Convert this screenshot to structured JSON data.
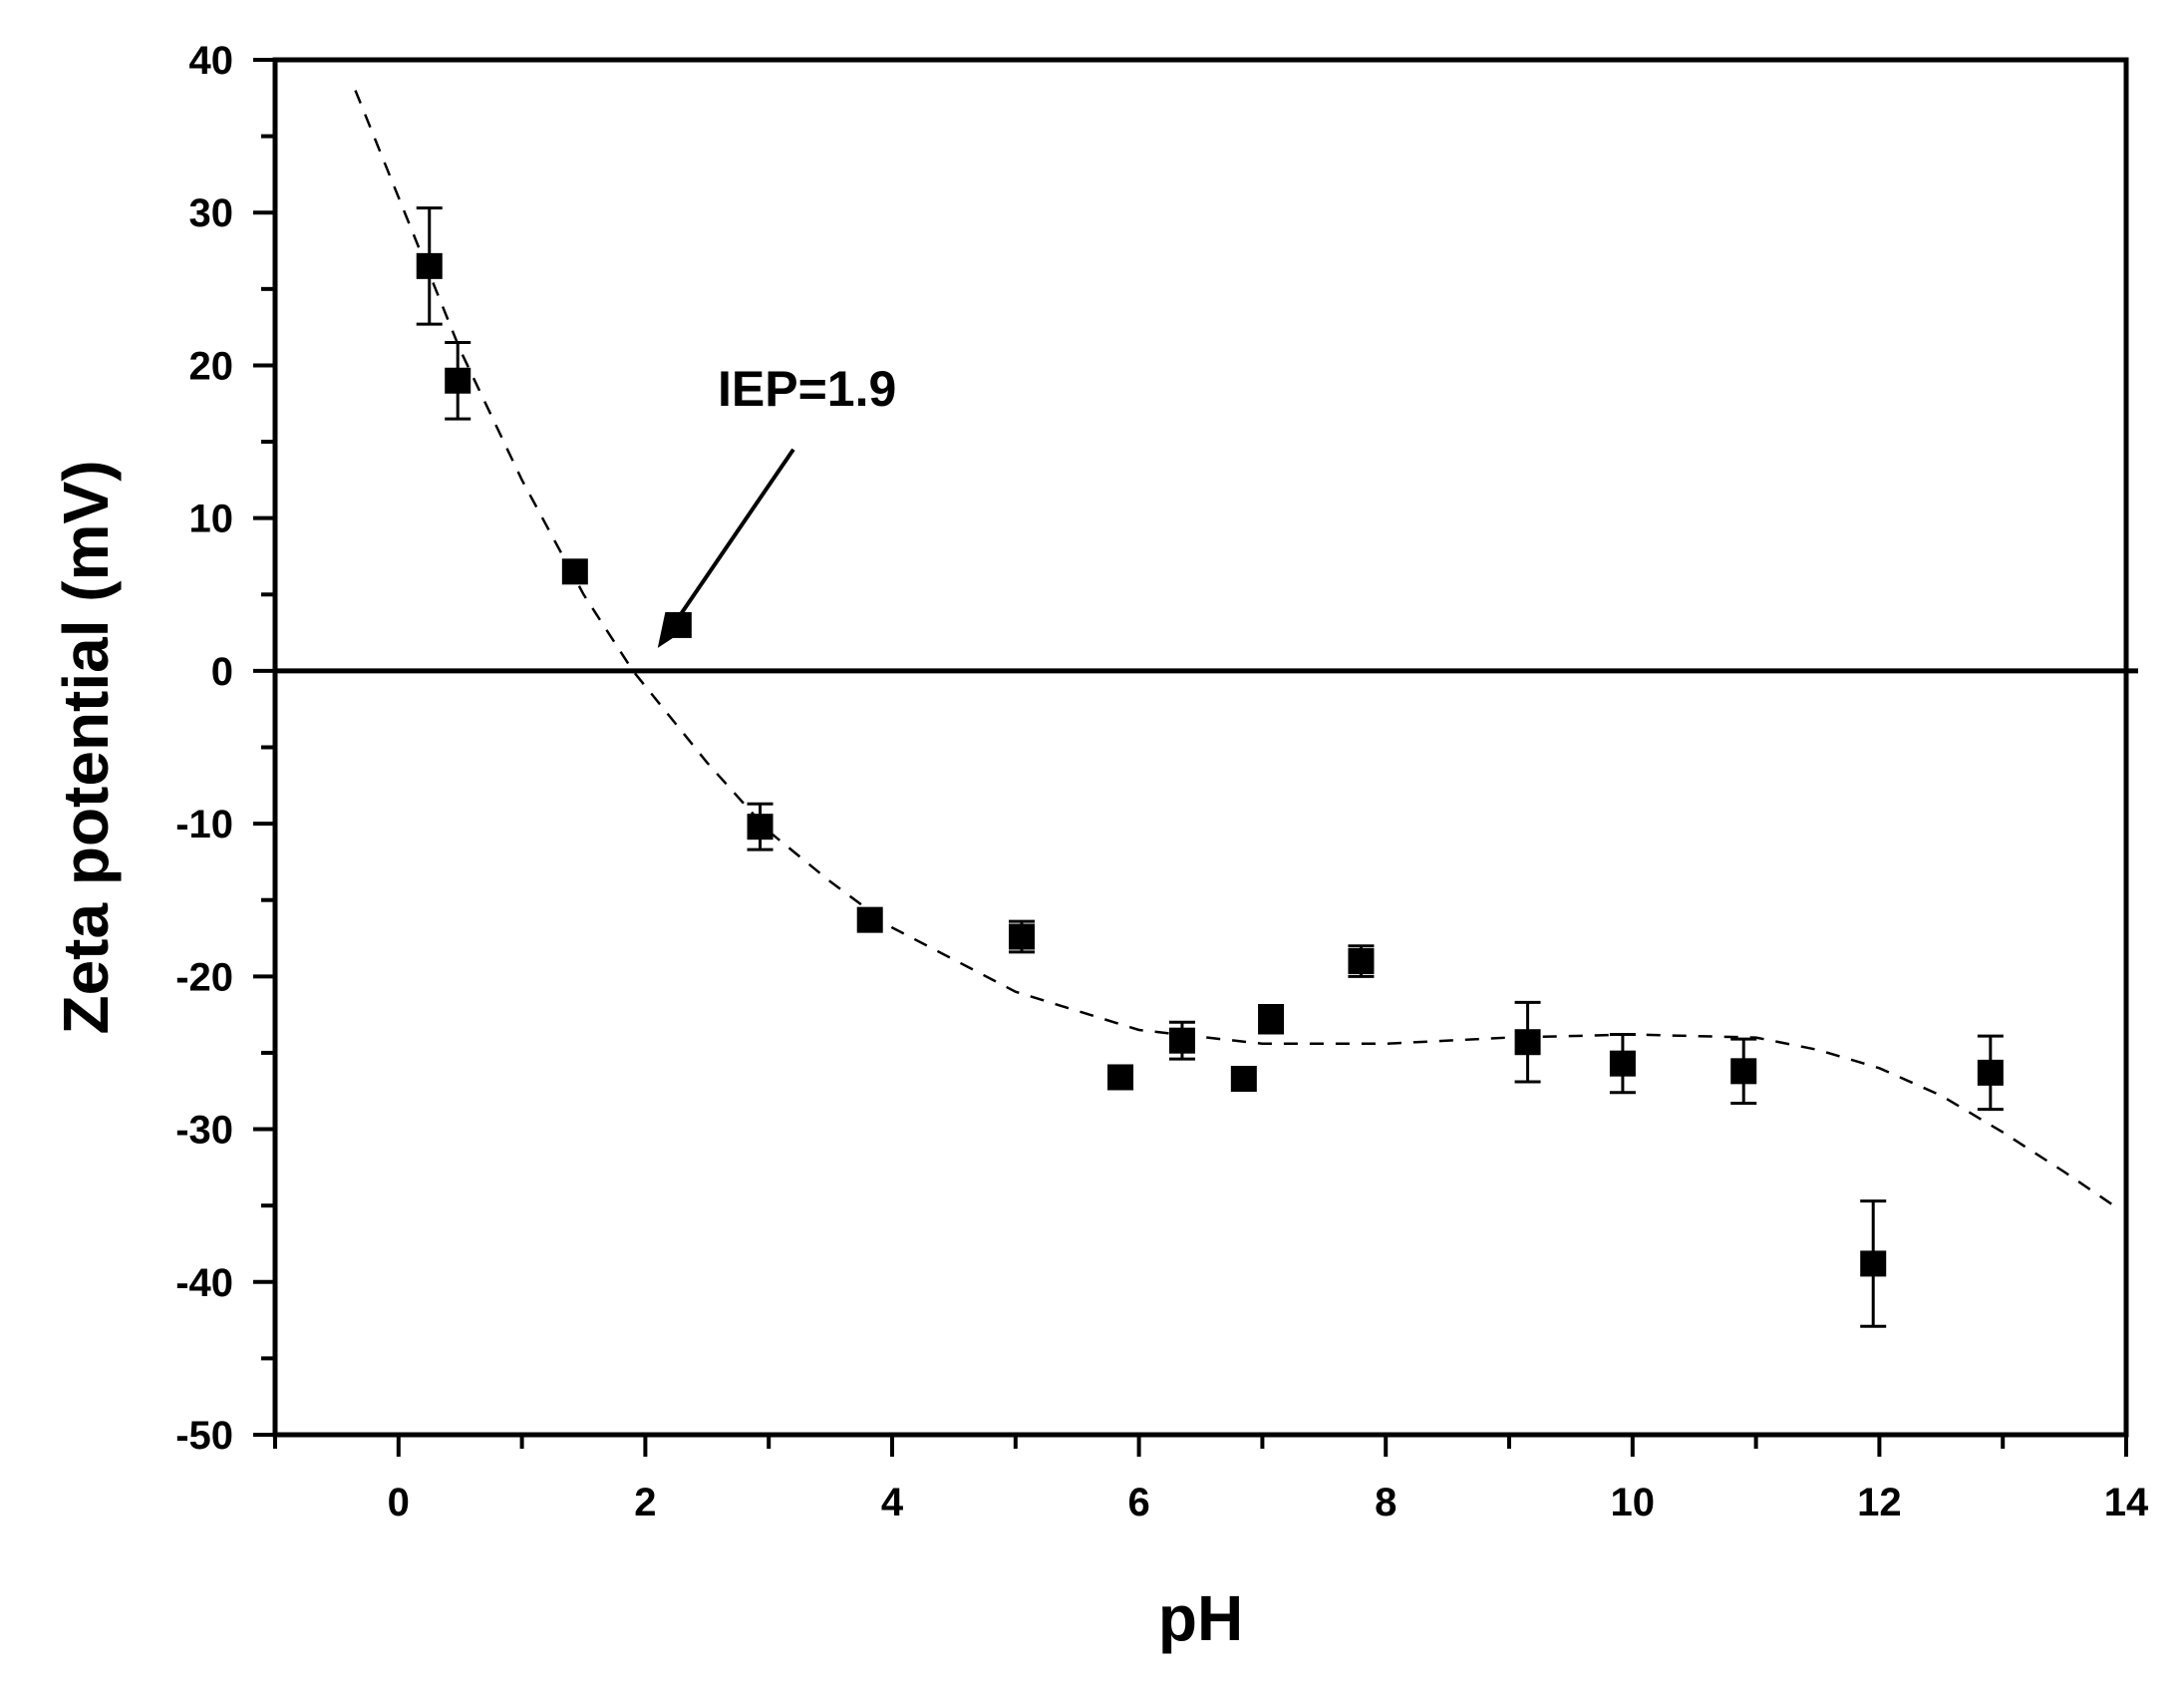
{
  "chart_data": {
    "type": "scatter",
    "xlabel": "pH",
    "ylabel": "Zeta potential (mV)",
    "xlim": [
      -1,
      14
    ],
    "ylim": [
      -50,
      40
    ],
    "x_ticks": [
      0,
      2,
      4,
      6,
      8,
      10,
      12,
      14
    ],
    "y_ticks": [
      40,
      30,
      20,
      10,
      0,
      -10,
      -20,
      -30,
      -40,
      -50
    ],
    "grid": false,
    "legend": "none",
    "zero_line": true,
    "colors": {
      "marker": "#000000",
      "fit": "#000000",
      "axis": "#000000"
    },
    "series": [
      {
        "marker": "square",
        "points": [
          {
            "x": 0.25,
            "y": 26.5,
            "err": 3.8
          },
          {
            "x": 0.48,
            "y": 19.0,
            "err": 2.5
          },
          {
            "x": 1.43,
            "y": 6.5,
            "err": 0.4
          },
          {
            "x": 2.27,
            "y": 3.0,
            "err": 0.4
          },
          {
            "x": 2.93,
            "y": -10.2,
            "err": 1.5
          },
          {
            "x": 3.82,
            "y": -16.3,
            "err": 0.4
          },
          {
            "x": 5.05,
            "y": -17.4,
            "err": 1.0
          },
          {
            "x": 5.85,
            "y": -26.6,
            "err": 0.5
          },
          {
            "x": 6.35,
            "y": -24.2,
            "err": 1.2
          },
          {
            "x": 6.85,
            "y": -26.7,
            "err": 0.4
          },
          {
            "x": 7.07,
            "y": -22.8,
            "err": 0.9
          },
          {
            "x": 7.8,
            "y": -19.0,
            "err": 1.0
          },
          {
            "x": 9.15,
            "y": -24.3,
            "err": 2.6
          },
          {
            "x": 9.92,
            "y": -25.7,
            "err": 1.9
          },
          {
            "x": 10.9,
            "y": -26.2,
            "err": 2.1
          },
          {
            "x": 11.95,
            "y": -38.8,
            "err": 4.1
          },
          {
            "x": 12.9,
            "y": -26.3,
            "err": 2.4
          }
        ]
      }
    ],
    "fit_curve": [
      {
        "x": -0.35,
        "y": 38.0
      },
      {
        "x": 0.0,
        "y": 31.0
      },
      {
        "x": 0.5,
        "y": 21.0
      },
      {
        "x": 1.0,
        "y": 12.5
      },
      {
        "x": 1.5,
        "y": 5.0
      },
      {
        "x": 1.9,
        "y": 0.0
      },
      {
        "x": 2.5,
        "y": -6.0
      },
      {
        "x": 3.0,
        "y": -10.5
      },
      {
        "x": 3.5,
        "y": -13.8
      },
      {
        "x": 4.0,
        "y": -16.8
      },
      {
        "x": 5.0,
        "y": -21.0
      },
      {
        "x": 6.0,
        "y": -23.5
      },
      {
        "x": 7.0,
        "y": -24.4
      },
      {
        "x": 8.0,
        "y": -24.4
      },
      {
        "x": 9.0,
        "y": -24.0
      },
      {
        "x": 10.0,
        "y": -23.8
      },
      {
        "x": 11.0,
        "y": -24.0
      },
      {
        "x": 11.5,
        "y": -24.8
      },
      {
        "x": 12.0,
        "y": -26.0
      },
      {
        "x": 12.5,
        "y": -27.8
      },
      {
        "x": 13.0,
        "y": -30.2
      },
      {
        "x": 13.5,
        "y": -32.8
      },
      {
        "x": 13.9,
        "y": -35.0
      }
    ],
    "annotation": {
      "text": "IEP=1.9",
      "arrow_from": {
        "x": 3.2,
        "y": 14.5
      },
      "arrow_to": {
        "x": 2.1,
        "y": 1.5
      }
    }
  }
}
